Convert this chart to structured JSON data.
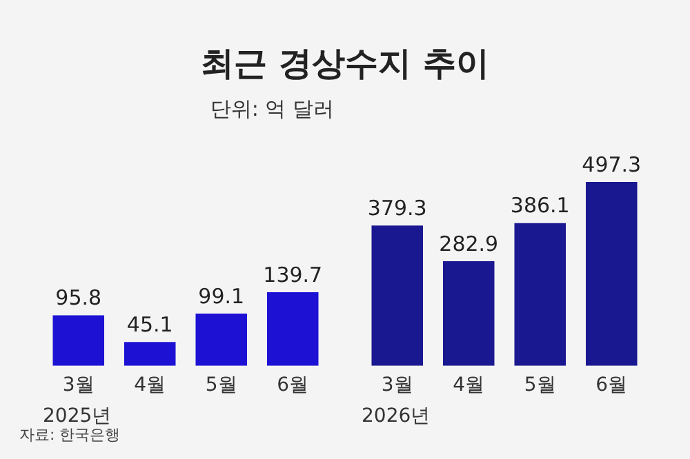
{
  "chart_data": [
    {
      "type": "bar",
      "title": "최근 경상수지 추이",
      "subtitle": "단위: 억 달러",
      "annotations": [
        "자료: 한국은행"
      ],
      "categories": [
        "3월",
        "4월",
        "5월",
        "6월"
      ],
      "xlabel": "2025년",
      "values": [
        95.8,
        45.1,
        99.1,
        139.7
      ],
      "color": "#1d12d4",
      "tick_labels": "x",
      "grid": false,
      "data_labels": true,
      "legend": false
    },
    {
      "type": "bar",
      "categories": [
        "3월",
        "4월",
        "5월",
        "6월"
      ],
      "xlabel": "2026년",
      "values": [
        379.3,
        282.9,
        386.1,
        497.3
      ],
      "color": "#1a1890",
      "tick_labels": "x",
      "grid": false,
      "data_labels": true,
      "legend": false
    }
  ]
}
